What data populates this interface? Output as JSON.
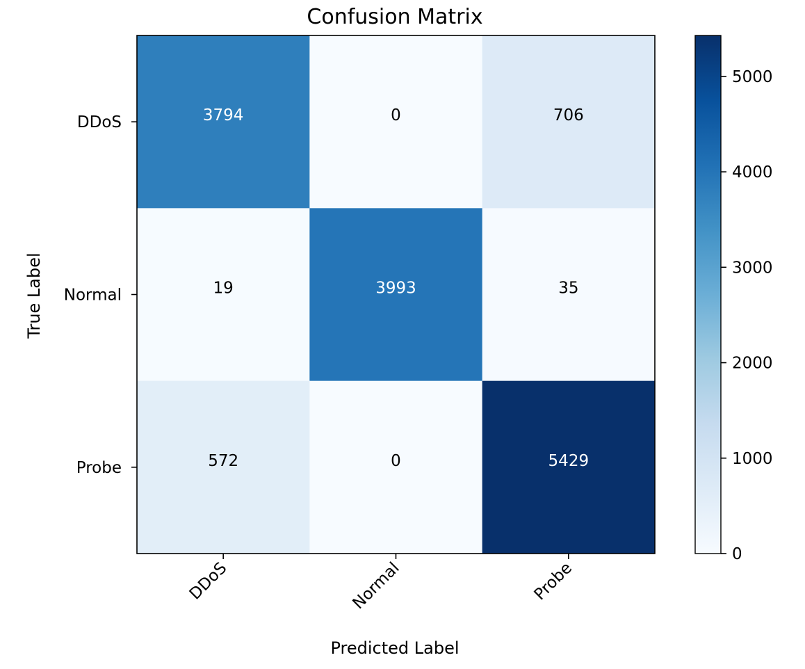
{
  "chart_data": {
    "type": "heatmap",
    "title": "Confusion Matrix",
    "xlabel": "Predicted Label",
    "ylabel": "True Label",
    "x_categories": [
      "DDoS",
      "Normal",
      "Probe"
    ],
    "y_categories": [
      "DDoS",
      "Normal",
      "Probe"
    ],
    "values": [
      [
        3794,
        0,
        706
      ],
      [
        19,
        3993,
        35
      ],
      [
        572,
        0,
        5429
      ]
    ],
    "colormap": "Blues",
    "colorbar": {
      "min": 0,
      "max": 5429,
      "ticks": [
        0,
        1000,
        2000,
        3000,
        4000,
        5000
      ]
    },
    "grid": false,
    "colors": {
      "low": "#f7fbff",
      "high": "#08306b",
      "text_dark": "#000000",
      "text_light": "#ffffff"
    }
  }
}
